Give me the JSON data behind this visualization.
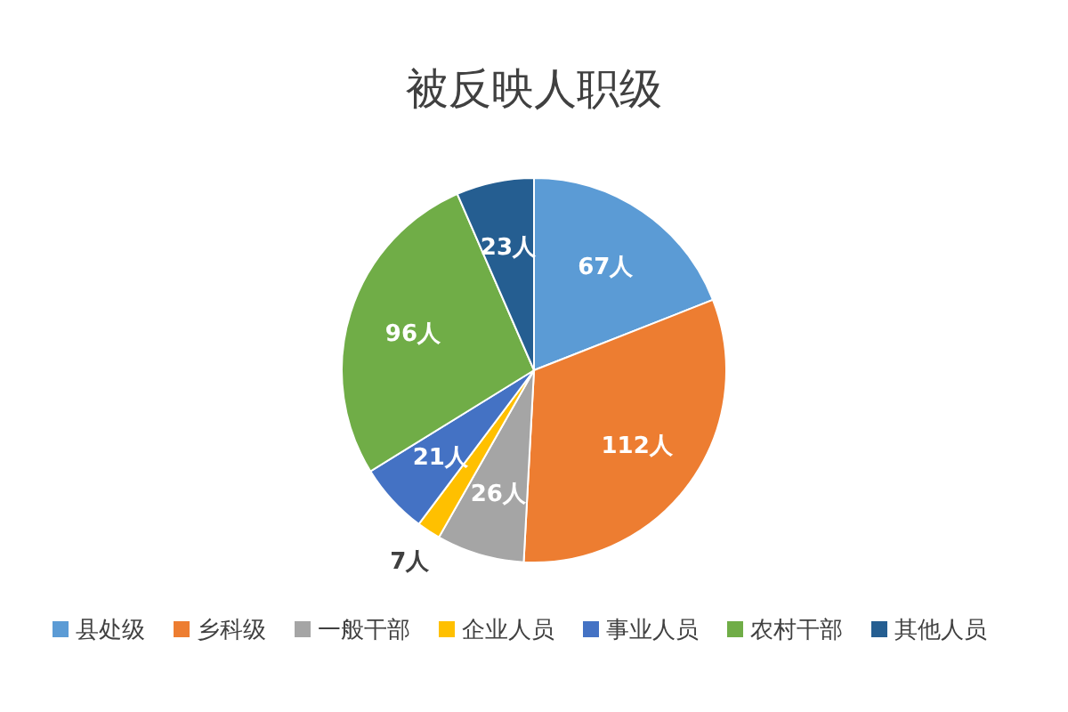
{
  "chart_data": {
    "type": "pie",
    "title": "被反映人职级",
    "categories": [
      "县处级",
      "乡科级",
      "一般干部",
      "企业人员",
      "事业人员",
      "农村干部",
      "其他人员"
    ],
    "values": [
      67,
      112,
      26,
      7,
      21,
      96,
      23
    ],
    "value_labels": [
      "67人",
      "112人",
      "26人",
      "7人",
      "21人",
      "96人",
      "23人"
    ],
    "colors": [
      "#5b9bd5",
      "#ed7d31",
      "#a5a5a5",
      "#ffc000",
      "#4472c4",
      "#70ad47",
      "#255e91"
    ],
    "legend": "bottom"
  }
}
